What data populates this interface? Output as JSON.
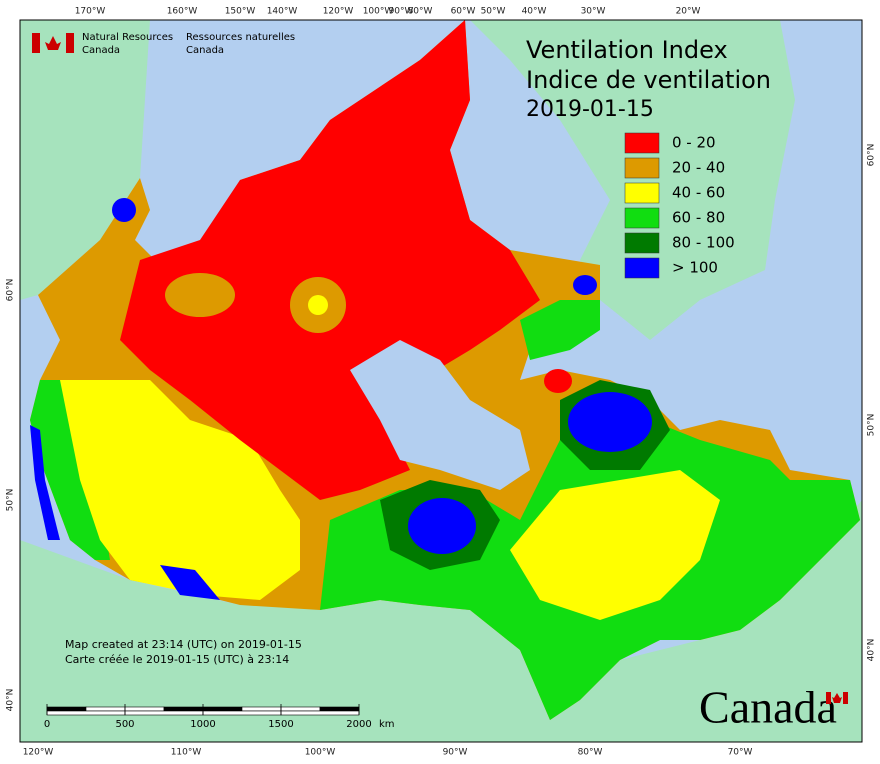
{
  "agency": {
    "en_line1": "Natural Resources",
    "en_line2": "Canada",
    "fr_line1": "Ressources naturelles",
    "fr_line2": "Canada"
  },
  "title": {
    "en": "Ventilation Index",
    "fr": "Indice de ventilation",
    "date": "2019-01-15"
  },
  "legend": [
    {
      "label": "0 - 20",
      "color": "#ff0000"
    },
    {
      "label": "20 - 40",
      "color": "#dd9a00"
    },
    {
      "label": "40 - 60",
      "color": "#ffff00"
    },
    {
      "label": "60 - 80",
      "color": "#11dd11"
    },
    {
      "label": "80 - 100",
      "color": "#007a00"
    },
    {
      "label": "> 100",
      "color": "#0000ff"
    }
  ],
  "graticule": {
    "top": [
      "170°W",
      "160°W",
      "150°W",
      "140°W",
      "120°W",
      "100°W",
      "90°W",
      "80°W",
      "60°W",
      "50°W",
      "40°W",
      "30°W",
      "20°W"
    ],
    "bottom": [
      "120°W",
      "110°W",
      "100°W",
      "90°W",
      "80°W",
      "70°W"
    ],
    "left": [
      "60°N",
      "50°N",
      "40°N"
    ],
    "right": [
      "60°N",
      "50°N",
      "40°N"
    ]
  },
  "notes": [
    "Map created at 23:14 (UTC) on 2019-01-15",
    "Carte créée le 2019-01-15 (UTC) à 23:14"
  ],
  "scale": {
    "ticks": [
      0,
      500,
      1000,
      1500,
      2000
    ],
    "unit": "km"
  },
  "wordmark": "Canada"
}
